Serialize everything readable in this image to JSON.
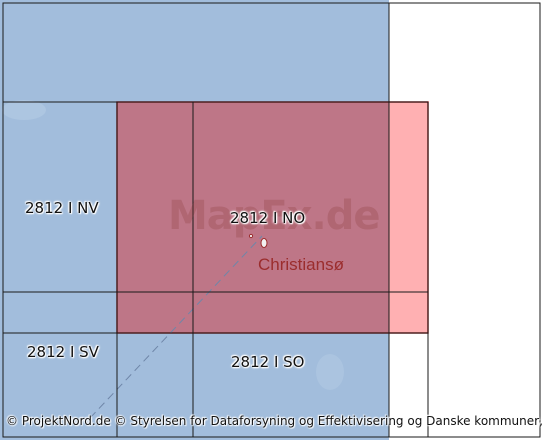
{
  "map": {
    "colors": {
      "sea": "#a2bddc",
      "land": "#ffffff",
      "highlight_fill": "#c0707f",
      "highlight_edge": "#b22a2a",
      "highlight_overflow": "#ffb0b2",
      "grid_line": "#1a1a1a"
    },
    "sheets": [
      {
        "label": "2812 I NV"
      },
      {
        "label": "2812 I NO"
      },
      {
        "label": "2812 I SV"
      },
      {
        "label": "2812 I SO"
      }
    ],
    "place": {
      "name": "Christiansø"
    },
    "watermark": "MapEx.de",
    "attribution": "© ProjektNord.de © Styrelsen for Dataforsyning og Effektivisering og Danske kommuner, DK"
  }
}
